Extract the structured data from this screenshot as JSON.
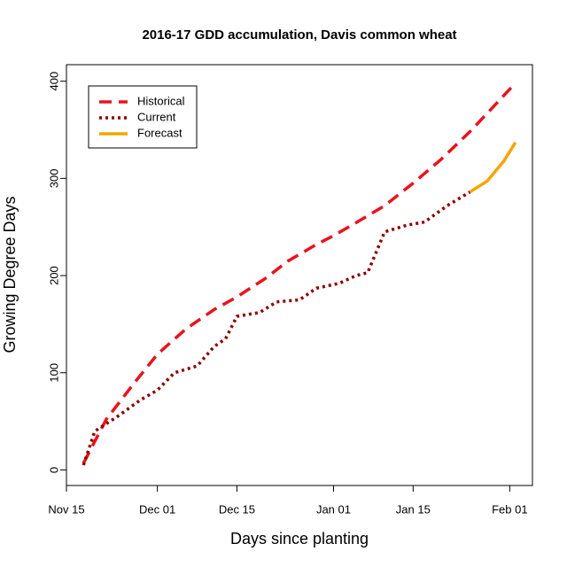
{
  "chart_data": {
    "type": "line",
    "title": "2016-17 GDD accumulation, Davis common wheat",
    "x_label": "Days since planting",
    "y_label": "Growing Degree Days",
    "xlim": [
      "Nov 15",
      "Feb 05"
    ],
    "xticks": [
      "Nov 15",
      "Dec 01",
      "Dec 15",
      "Jan 01",
      "Jan 15",
      "Feb 01"
    ],
    "ylim": [
      -16,
      417
    ],
    "yticks": [
      0,
      100,
      200,
      300,
      400
    ],
    "legend": "top-left",
    "series": [
      {
        "name": "Historical",
        "color": "#e8141c",
        "style": "dashed",
        "x": [
          "Nov 18",
          "Nov 22",
          "Nov 27",
          "Dec 01",
          "Dec 06",
          "Dec 11",
          "Dec 15",
          "Dec 20",
          "Dec 24",
          "Dec 29",
          "Jan 01",
          "Jan 06",
          "Jan 10",
          "Jan 15",
          "Jan 20",
          "Jan 25",
          "Jan 29",
          "Feb 02"
        ],
        "values": [
          7,
          52,
          90,
          119,
          145,
          165,
          178,
          197,
          215,
          232,
          241,
          258,
          272,
          295,
          320,
          348,
          373,
          398
        ]
      },
      {
        "name": "Current",
        "color": "#8b0000",
        "style": "dotted",
        "x": [
          "Nov 18",
          "Nov 20",
          "Nov 24",
          "Nov 28",
          "Dec 01",
          "Dec 04",
          "Dec 08",
          "Dec 11",
          "Dec 13",
          "Dec 15",
          "Dec 19",
          "Dec 22",
          "Dec 26",
          "Dec 29",
          "Jan 02",
          "Jan 05",
          "Jan 07",
          "Jan 10",
          "Jan 14",
          "Jan 17",
          "Jan 21",
          "Jan 25"
        ],
        "values": [
          5,
          40,
          55,
          72,
          82,
          100,
          107,
          127,
          135,
          158,
          162,
          173,
          175,
          187,
          192,
          200,
          203,
          245,
          252,
          255,
          272,
          286
        ]
      },
      {
        "name": "Forecast",
        "color": "#f5a500",
        "style": "solid",
        "x": [
          "Jan 25",
          "Jan 28",
          "Jan 31",
          "Feb 02"
        ],
        "values": [
          286,
          297,
          318,
          337
        ]
      }
    ]
  }
}
